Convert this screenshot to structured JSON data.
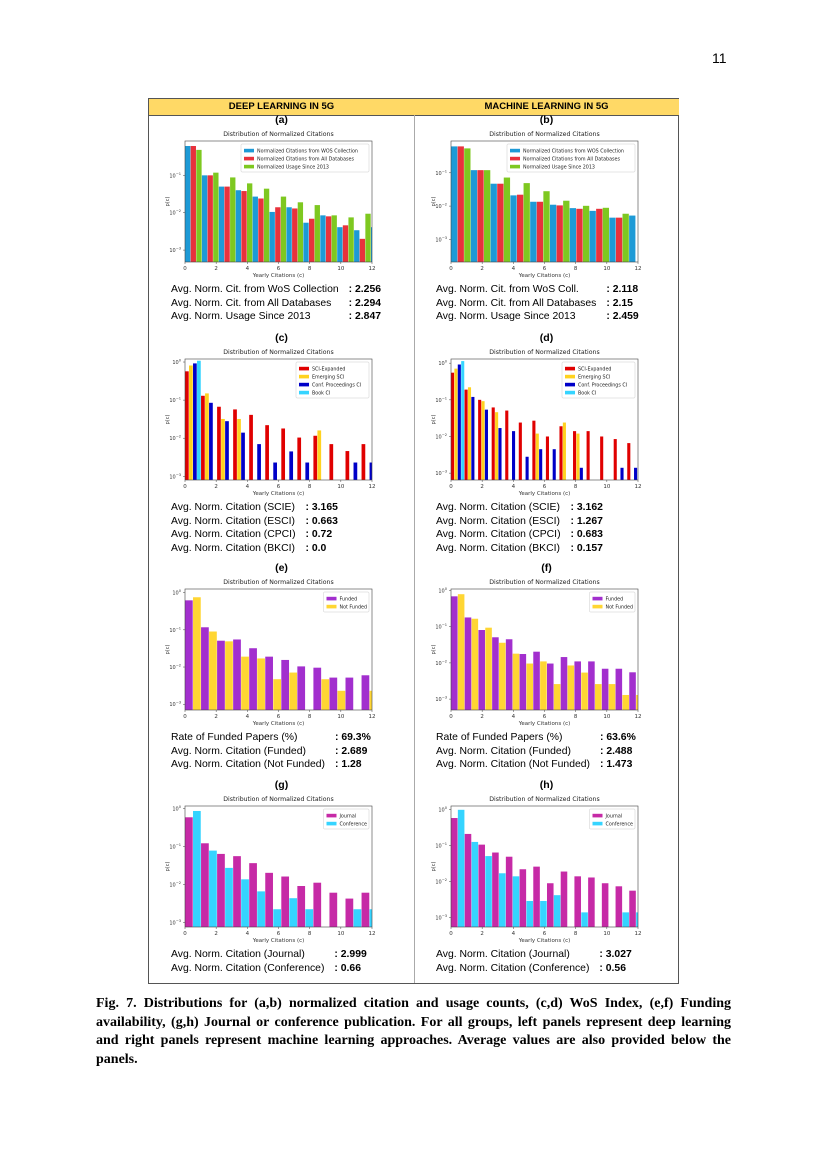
{
  "page_number": "11",
  "headers": {
    "left": "DEEP LEARNING IN 5G",
    "right": "MACHINE LEARNING IN 5G"
  },
  "caption": "Fig. 7. Distributions for (a,b) normalized citation and usage counts, (c,d) WoS Index, (e,f) Funding availability, (g,h) Journal or conference publication. For all groups, left panels represent deep learning and right panels represent machine learning approaches. Average values are also provided below the panels.",
  "panels": [
    {
      "label": "(a)",
      "stats": [
        {
          "label": "Avg. Norm. Cit. from WoS Collection",
          "value": ": 2.256"
        },
        {
          "label": "Avg. Norm. Cit. from All Databases",
          "value": ": 2.294"
        },
        {
          "label": "Avg. Norm. Usage Since 2013",
          "value": ": 2.847"
        }
      ]
    },
    {
      "label": "(b)",
      "stats": [
        {
          "label": "Avg. Norm. Cit. from WoS Coll.",
          "value": ": 2.118"
        },
        {
          "label": "Avg. Norm. Cit. from All Databases",
          "value": ": 2.15"
        },
        {
          "label": "Avg. Norm. Usage Since 2013",
          "value": ": 2.459"
        }
      ]
    },
    {
      "label": "(c)",
      "stats": [
        {
          "label": "Avg. Norm. Citation (SCIE)",
          "value": ": 3.165"
        },
        {
          "label": "Avg. Norm. Citation (ESCI)",
          "value": ": 0.663"
        },
        {
          "label": "Avg. Norm. Citation (CPCI)",
          "value": ": 0.72"
        },
        {
          "label": "Avg. Norm. Citation (BKCI)",
          "value": ": 0.0"
        }
      ]
    },
    {
      "label": "(d)",
      "stats": [
        {
          "label": "Avg. Norm. Citation (SCIE)",
          "value": ": 3.162"
        },
        {
          "label": "Avg. Norm. Citation (ESCI)",
          "value": ": 1.267"
        },
        {
          "label": "Avg. Norm. Citation (CPCI)",
          "value": ": 0.683"
        },
        {
          "label": "Avg. Norm. Citation (BKCI)",
          "value": ": 0.157"
        }
      ]
    },
    {
      "label": "(e)",
      "stats": [
        {
          "label": "Rate of Funded Papers (%)",
          "value": ": 69.3%"
        },
        {
          "label": "Avg. Norm. Citation (Funded)",
          "value": ": 2.689"
        },
        {
          "label": "Avg. Norm. Citation (Not Funded)",
          "value": ": 1.28"
        }
      ]
    },
    {
      "label": "(f)",
      "stats": [
        {
          "label": "Rate of Funded Papers (%)",
          "value": ": 63.6%"
        },
        {
          "label": "Avg. Norm. Citation (Funded)",
          "value": ": 2.488"
        },
        {
          "label": "Avg. Norm. Citation (Not Funded)",
          "value": ": 1.473"
        }
      ]
    },
    {
      "label": "(g)",
      "stats": [
        {
          "label": "Avg. Norm. Citation (Journal)",
          "value": ": 2.999"
        },
        {
          "label": "Avg. Norm. Citation (Conference)",
          "value": ": 0.66"
        }
      ]
    },
    {
      "label": "(h)",
      "stats": [
        {
          "label": "Avg. Norm. Citation (Journal)",
          "value": ": 3.027"
        },
        {
          "label": "Avg. Norm. Citation (Conference)",
          "value": ": 0.56"
        }
      ]
    }
  ],
  "chart_data": [
    {
      "panel": "(a)",
      "type": "bar",
      "title": "Distribution of Normalized Citations",
      "xlabel": "Yearly Citations (c)",
      "ylabel": "p(c)",
      "yscale": "log",
      "xlim": [
        0,
        12
      ],
      "ylim": [
        0.00048,
        0.83
      ],
      "xticks": [
        0,
        2,
        4,
        6,
        8,
        10,
        12
      ],
      "yticks_exp": [
        -1,
        -2,
        -3
      ],
      "bin_width": 1.085,
      "legend": "top-right",
      "series": [
        {
          "name": "Normalized Citations from WOS Collection",
          "color": "#1d9ad6",
          "values": [
            0.61,
            0.1,
            0.05,
            0.04,
            0.027,
            0.0105,
            0.014,
            0.0054,
            0.0085,
            0.0041,
            0.0034,
            0.0041
          ]
        },
        {
          "name": "Normalized Citations from All Databases",
          "color": "#e8323c",
          "values": [
            0.61,
            0.1,
            0.05,
            0.038,
            0.024,
            0.014,
            0.013,
            0.0069,
            0.008,
            0.0046,
            0.002,
            null
          ]
        },
        {
          "name": "Normalized Usage Since 2013",
          "color": "#7ec820",
          "values": [
            0.48,
            0.118,
            0.088,
            0.061,
            0.044,
            0.027,
            0.019,
            0.016,
            0.0085,
            0.0075,
            0.0094,
            null
          ]
        }
      ]
    },
    {
      "panel": "(b)",
      "type": "bar",
      "title": "Distribution of Normalized Citations",
      "xlabel": "Yearly Citations (c)",
      "ylabel": "p(c)",
      "yscale": "log",
      "xlim": [
        0,
        12
      ],
      "ylim": [
        0.00021,
        0.9
      ],
      "xticks": [
        0,
        2,
        4,
        6,
        8,
        10,
        12
      ],
      "yticks_exp": [
        -1,
        -2,
        -3
      ],
      "bin_width": 1.27,
      "legend": "top-right",
      "series": [
        {
          "name": "Normalized Citations from WOS Collection",
          "color": "#1d9ad6",
          "values": [
            0.62,
            0.12,
            0.047,
            0.021,
            0.0135,
            0.011,
            0.0087,
            0.0072,
            0.0045,
            0.0052
          ]
        },
        {
          "name": "Normalized Citations from All Databases",
          "color": "#e8323c",
          "values": [
            0.62,
            0.12,
            0.047,
            0.022,
            0.0135,
            0.0105,
            0.0083,
            0.0083,
            0.0045,
            null
          ]
        },
        {
          "name": "Normalized Usage Since 2013",
          "color": "#7ec820",
          "values": [
            0.54,
            0.12,
            0.072,
            0.049,
            0.028,
            0.0145,
            0.0102,
            0.0089,
            0.0059,
            null
          ]
        }
      ]
    },
    {
      "panel": "(c)",
      "type": "bar",
      "title": "Distribution of Normalized Citations",
      "xlabel": "Yearly Citations (c)",
      "ylabel": "p(c)",
      "yscale": "log",
      "xlim": [
        0,
        12
      ],
      "ylim": [
        0.0008,
        1.2
      ],
      "xticks": [
        0,
        2,
        4,
        6,
        8,
        10,
        12
      ],
      "yticks_exp": [
        0,
        -1,
        -2,
        -3
      ],
      "bin_width": 1.03,
      "legend": "top-right",
      "series": [
        {
          "name": "SCI-Expanded",
          "color": "#e00000",
          "values": [
            0.57,
            0.13,
            0.067,
            0.057,
            0.041,
            0.022,
            0.018,
            0.0104,
            0.0116,
            0.007,
            0.0046,
            0.007
          ]
        },
        {
          "name": "Emerging SCI",
          "color": "#ffd21f",
          "values": [
            0.81,
            0.15,
            0.032,
            0.032,
            null,
            null,
            null,
            null,
            0.016,
            null,
            null,
            null
          ]
        },
        {
          "name": "Conf. Proceedings CI",
          "color": "#0000c8",
          "values": [
            0.92,
            0.085,
            0.028,
            0.014,
            0.007,
            0.0023,
            0.0045,
            0.0023,
            null,
            null,
            0.0023,
            0.0023
          ]
        },
        {
          "name": "Book CI",
          "color": "#35d4ff",
          "values": [
            1.08,
            null,
            null,
            null,
            null,
            null,
            null,
            null,
            null,
            null,
            null,
            null
          ]
        }
      ]
    },
    {
      "panel": "(d)",
      "type": "bar",
      "title": "Distribution of Normalized Citations",
      "xlabel": "Yearly Citations (c)",
      "ylabel": "p(c)",
      "yscale": "log",
      "xlim": [
        0,
        12
      ],
      "ylim": [
        0.00065,
        1.3
      ],
      "xticks": [
        0,
        2,
        4,
        6,
        8,
        10,
        12
      ],
      "yticks_exp": [
        0,
        -1,
        -2,
        -3
      ],
      "bin_width": 0.87,
      "legend": "top-right",
      "series": [
        {
          "name": "SCI-Expanded",
          "color": "#e00000",
          "values": [
            0.55,
            0.19,
            0.1,
            0.062,
            0.051,
            0.024,
            0.027,
            0.01,
            0.019,
            0.014,
            0.014,
            0.01,
            0.0085,
            0.0066
          ]
        },
        {
          "name": "Emerging SCI",
          "color": "#ffd21f",
          "values": [
            0.71,
            0.22,
            0.092,
            0.046,
            null,
            null,
            0.012,
            null,
            0.024,
            0.012,
            null,
            null,
            null,
            null
          ]
        },
        {
          "name": "Conf. Proceedings CI",
          "color": "#0000c8",
          "values": [
            0.92,
            0.12,
            0.054,
            0.017,
            0.014,
            0.0028,
            0.0045,
            0.0045,
            null,
            0.0014,
            null,
            null,
            0.0014,
            0.0014
          ]
        },
        {
          "name": "Book CI",
          "color": "#35d4ff",
          "values": [
            1.14,
            null,
            null,
            null,
            null,
            null,
            null,
            null,
            null,
            null,
            null,
            null,
            null,
            null
          ]
        }
      ]
    },
    {
      "panel": "(e)",
      "type": "bar",
      "title": "Distribution of Normalized Citations",
      "xlabel": "Yearly Citations (c)",
      "ylabel": "p(c)",
      "yscale": "log",
      "xlim": [
        0,
        12
      ],
      "ylim": [
        0.0007,
        1.25
      ],
      "xticks": [
        0,
        2,
        4,
        6,
        8,
        10,
        12
      ],
      "yticks_exp": [
        0,
        -1,
        -2,
        -3
      ],
      "bin_width": 1.03,
      "legend": "top-right",
      "series": [
        {
          "name": "Funded",
          "color": "#a22fce",
          "values": [
            0.62,
            0.117,
            0.051,
            0.055,
            0.032,
            0.019,
            0.0155,
            0.0104,
            0.0096,
            0.0052,
            0.0052,
            0.006
          ]
        },
        {
          "name": "Not Funded",
          "color": "#ffd633",
          "values": [
            0.75,
            0.09,
            0.049,
            0.019,
            0.017,
            0.0047,
            0.0071,
            null,
            0.0047,
            0.0023,
            null,
            0.0023
          ]
        }
      ]
    },
    {
      "panel": "(f)",
      "type": "bar",
      "title": "Distribution of Normalized Citations",
      "xlabel": "Yearly Citations (c)",
      "ylabel": "p(c)",
      "yscale": "log",
      "xlim": [
        0,
        12
      ],
      "ylim": [
        0.0005,
        1.1
      ],
      "xticks": [
        0,
        2,
        4,
        6,
        8,
        10,
        12
      ],
      "yticks_exp": [
        0,
        -1,
        -2,
        -3
      ],
      "bin_width": 0.88,
      "legend": "top-right",
      "series": [
        {
          "name": "Funded",
          "color": "#a22fce",
          "values": [
            0.69,
            0.18,
            0.081,
            0.051,
            0.045,
            0.0176,
            0.0204,
            0.0096,
            0.0145,
            0.011,
            0.011,
            0.0069,
            0.0069,
            0.0055
          ]
        },
        {
          "name": "Not Funded",
          "color": "#ffd633",
          "values": [
            0.79,
            0.166,
            0.094,
            0.036,
            0.018,
            0.0096,
            0.011,
            0.0026,
            0.0085,
            0.0054,
            0.0026,
            0.0026,
            0.0013,
            0.0013
          ]
        }
      ]
    },
    {
      "panel": "(g)",
      "type": "bar",
      "title": "Distribution of Normalized Citations",
      "xlabel": "Yearly Citations (c)",
      "ylabel": "p(c)",
      "yscale": "log",
      "xlim": [
        0,
        12
      ],
      "ylim": [
        0.00075,
        1.15
      ],
      "xticks": [
        0,
        2,
        4,
        6,
        8,
        10,
        12
      ],
      "yticks_exp": [
        0,
        -1,
        -2,
        -3
      ],
      "bin_width": 1.03,
      "legend": "top-right",
      "series": [
        {
          "name": "Journal",
          "color": "#c62aa6",
          "values": [
            0.58,
            0.12,
            0.063,
            0.055,
            0.036,
            0.02,
            0.016,
            0.009,
            0.011,
            0.006,
            0.0042,
            0.006
          ]
        },
        {
          "name": "Conference",
          "color": "#35d4ff",
          "values": [
            0.85,
            0.077,
            0.027,
            0.0135,
            0.0065,
            0.0022,
            0.0043,
            0.0022,
            null,
            null,
            0.0022,
            0.0022
          ]
        }
      ]
    },
    {
      "panel": "(h)",
      "type": "bar",
      "title": "Distribution of Normalized Citations",
      "xlabel": "Yearly Citations (c)",
      "ylabel": "p(c)",
      "yscale": "log",
      "xlim": [
        0,
        12
      ],
      "ylim": [
        0.00055,
        1.25
      ],
      "xticks": [
        0,
        2,
        4,
        6,
        8,
        10,
        12
      ],
      "yticks_exp": [
        0,
        -1,
        -2,
        -3
      ],
      "bin_width": 0.88,
      "legend": "top-right",
      "series": [
        {
          "name": "Journal",
          "color": "#c62aa6",
          "values": [
            0.58,
            0.21,
            0.106,
            0.064,
            0.049,
            0.022,
            0.026,
            0.009,
            0.019,
            0.014,
            0.013,
            0.009,
            0.0074,
            0.0056
          ]
        },
        {
          "name": "Conference",
          "color": "#35d4ff",
          "values": [
            0.98,
            0.126,
            0.051,
            0.017,
            0.014,
            0.0029,
            0.0029,
            0.0042,
            null,
            0.0014,
            null,
            null,
            0.0014,
            0.0014
          ]
        }
      ]
    }
  ]
}
